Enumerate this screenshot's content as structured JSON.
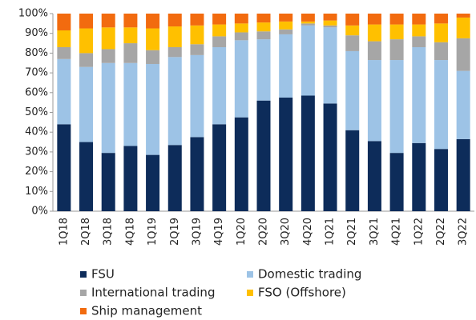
{
  "chart_data": {
    "type": "bar",
    "stacked": true,
    "categories": [
      "1Q18",
      "2Q18",
      "3Q18",
      "4Q18",
      "1Q19",
      "2Q19",
      "3Q19",
      "4Q19",
      "1Q20",
      "2Q20",
      "3Q20",
      "4Q20",
      "1Q21",
      "2Q21",
      "3Q21",
      "4Q21",
      "1Q22",
      "2Q22",
      "3Q22"
    ],
    "series": [
      {
        "name": "FSU",
        "color": "#0d2c5a",
        "values": [
          44,
          35,
          29.5,
          33,
          28.5,
          33.5,
          37.5,
          44,
          47.5,
          56,
          57.5,
          58.5,
          54.5,
          41,
          35.5,
          29.5,
          34.5,
          31.5,
          36.5
        ]
      },
      {
        "name": "Domestic trading",
        "color": "#9dc3e6",
        "values": [
          33,
          38,
          45.5,
          42,
          46,
          44.5,
          41.5,
          39,
          39,
          31,
          32,
          35.5,
          38.5,
          40,
          41,
          47,
          48.5,
          45,
          34.5
        ]
      },
      {
        "name": "International trading",
        "color": "#a6a6a6",
        "values": [
          6,
          7,
          7,
          10,
          7,
          5,
          5.5,
          5.5,
          4,
          4,
          2.5,
          1,
          1,
          8,
          9.5,
          10.5,
          5.5,
          9,
          16.5
        ]
      },
      {
        "name": "FSO (Offshore)",
        "color": "#ffc000",
        "values": [
          8.5,
          12.5,
          11,
          8,
          11,
          10.5,
          9.5,
          6,
          4.5,
          4.5,
          4,
          1,
          2.5,
          5,
          8.5,
          7.5,
          6,
          9.5,
          10.5
        ]
      },
      {
        "name": "Ship management",
        "color": "#f26b0f",
        "values": [
          8.5,
          7.5,
          7,
          7,
          7.5,
          6.5,
          6,
          5.5,
          5,
          4.5,
          4,
          4,
          3.5,
          6,
          5.5,
          5.5,
          5.5,
          5,
          2
        ]
      }
    ],
    "ylim": [
      0,
      100
    ],
    "yticks": [
      {
        "value": 0,
        "label": "0%"
      },
      {
        "value": 10,
        "label": "10%"
      },
      {
        "value": 20,
        "label": "20%"
      },
      {
        "value": 30,
        "label": "30%"
      },
      {
        "value": 40,
        "label": "40%"
      },
      {
        "value": 50,
        "label": "50%"
      },
      {
        "value": 60,
        "label": "60%"
      },
      {
        "value": 70,
        "label": "70%"
      },
      {
        "value": 80,
        "label": "80%"
      },
      {
        "value": 90,
        "label": "90%"
      },
      {
        "value": 100,
        "label": "100%"
      }
    ]
  }
}
